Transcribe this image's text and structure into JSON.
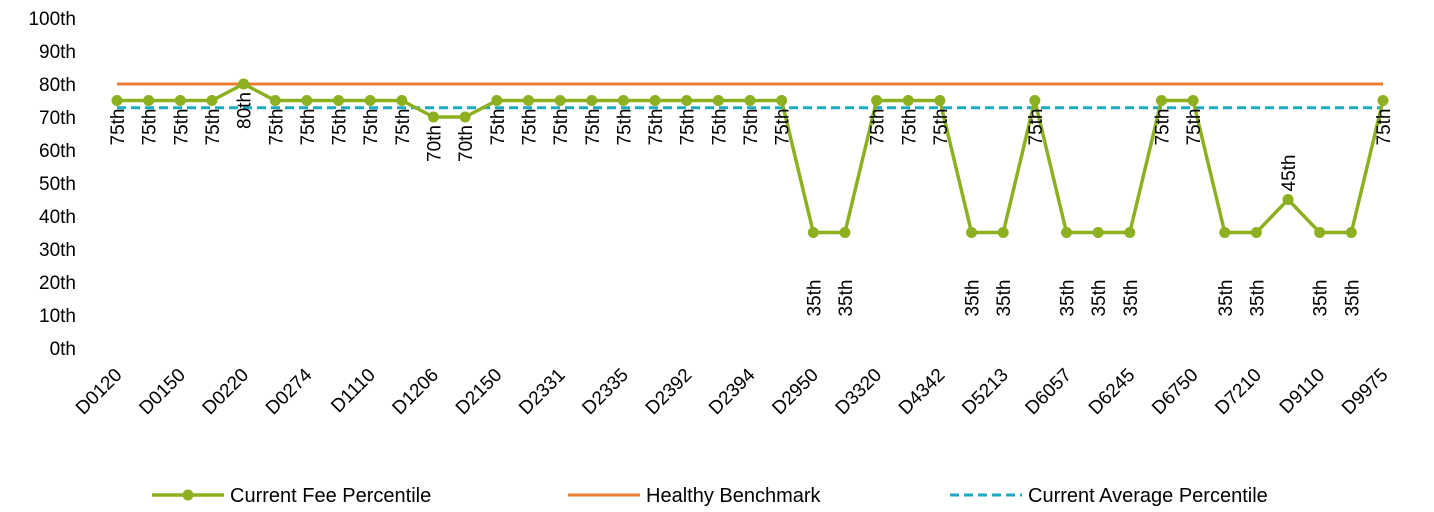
{
  "chart_data": {
    "type": "line",
    "title": "",
    "xlabel": "",
    "ylabel": "",
    "ylim": [
      0,
      100
    ],
    "y_ticks": [
      "0th",
      "10th",
      "20th",
      "30th",
      "40th",
      "50th",
      "60th",
      "70th",
      "80th",
      "90th",
      "100th"
    ],
    "x_tick_labels": [
      "D0120",
      "D0150",
      "D0220",
      "D0274",
      "D1110",
      "D1206",
      "D2150",
      "D2331",
      "D2335",
      "D2392",
      "D2394",
      "D2950",
      "D3320",
      "D4342",
      "D5213",
      "D6057",
      "D6245",
      "D6750",
      "D7210",
      "D9110",
      "D9975"
    ],
    "point_count": 41,
    "series": [
      {
        "name": "Current Fee Percentile",
        "color": "#8DB021",
        "marker": "circle",
        "values": [
          75,
          75,
          75,
          75,
          80,
          75,
          75,
          75,
          75,
          75,
          70,
          70,
          75,
          75,
          75,
          75,
          75,
          75,
          75,
          75,
          75,
          75,
          35,
          35,
          75,
          75,
          75,
          35,
          35,
          75,
          35,
          35,
          35,
          75,
          75,
          35,
          35,
          45,
          35,
          35,
          75
        ],
        "labels": [
          "75th",
          "75th",
          "75th",
          "75th",
          "80th",
          "75th",
          "75th",
          "75th",
          "75th",
          "75th",
          "70th",
          "70th",
          "75th",
          "75th",
          "75th",
          "75th",
          "75th",
          "75th",
          "75th",
          "75th",
          "75th",
          "75th",
          "35th",
          "35th",
          "75th",
          "75th",
          "75th",
          "35th",
          "35th",
          "75th",
          "35th",
          "35th",
          "35th",
          "75th",
          "75th",
          "35th",
          "35th",
          "45th",
          "35th",
          "35th",
          "75th"
        ]
      },
      {
        "name": "Healthy Benchmark",
        "color": "#ED7D31",
        "style": "solid",
        "value": 80
      },
      {
        "name": "Current Average Percentile",
        "color": "#1EAAC0",
        "style": "dashed",
        "value": 72.8
      }
    ],
    "legend_position": "bottom",
    "grid": false
  }
}
